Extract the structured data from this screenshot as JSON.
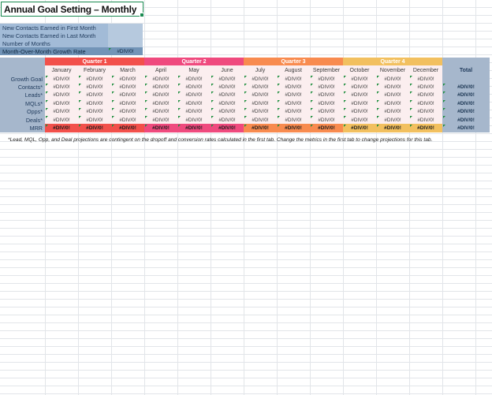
{
  "title": "Annual Goal Setting – Monthly",
  "summary": {
    "rows": [
      {
        "label": "New Contacts Earned in First Month",
        "value": ""
      },
      {
        "label": "New Contacts Earned in Last Month",
        "value": ""
      },
      {
        "label": "Number of Months",
        "value": ""
      },
      {
        "label": "Month-Over-Month Growth Rate",
        "value": "#DIV/0!"
      }
    ]
  },
  "table": {
    "quarters": [
      {
        "label": "Quarter 1",
        "color": "#f2504b"
      },
      {
        "label": "Quarter 2",
        "color": "#ef4a7e"
      },
      {
        "label": "Quarter 3",
        "color": "#f88b4f"
      },
      {
        "label": "Quarter 4",
        "color": "#f2c05f"
      }
    ],
    "months": [
      "January",
      "February",
      "March",
      "April",
      "May",
      "June",
      "July",
      "August",
      "September",
      "October",
      "November",
      "December"
    ],
    "total_label": "Total",
    "error_value": "#DIV/0!",
    "rows": [
      {
        "label": "Growth Goal",
        "total": "",
        "quarter_colored": false
      },
      {
        "label": "Contacts*",
        "total": "#DIV/0!",
        "quarter_colored": false
      },
      {
        "label": "Leads*",
        "total": "#DIV/0!",
        "quarter_colored": false
      },
      {
        "label": "MQLs*",
        "total": "#DIV/0!",
        "quarter_colored": false
      },
      {
        "label": "Opps*",
        "total": "#DIV/0!",
        "quarter_colored": false
      },
      {
        "label": "Deals*",
        "total": "#DIV/0!",
        "quarter_colored": false
      },
      {
        "label": "MRR",
        "total": "#DIV/0!",
        "quarter_colored": true
      }
    ]
  },
  "footnote": "*Lead, MQL, Opp, and Deal projections are contingent on the dropoff and conversion rates calculated in the first tab. Change the metrics in the first tab to change projections for this tab.",
  "colors": {
    "label_bg": "#a6b7cc",
    "cell_bg": "#fbeeef",
    "summary_label_bg": "#a2bbd7",
    "summary_value_bg": "#b6c9de",
    "summary_highlight_bg": "#7294b7",
    "error_indicator_green": "#1e8e3e",
    "selection_border_green": "#1a8a51",
    "grid_line": "#e2e5e9",
    "dark_text": "#1f3a5c"
  }
}
